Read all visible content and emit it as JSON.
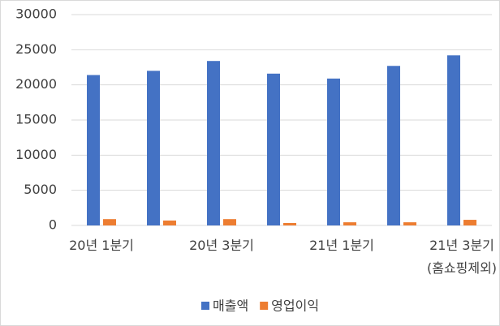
{
  "chart_data": {
    "type": "bar",
    "categories": [
      "20년 1분기",
      null,
      "20년 3분기",
      null,
      "21년 1분기",
      null,
      "21년 3분기\n(홈쇼핑제외)"
    ],
    "series": [
      {
        "name": "매출액",
        "color": "#4472c4",
        "values": [
          21400,
          22000,
          23400,
          21600,
          20900,
          22700,
          24200
        ]
      },
      {
        "name": "영업이익",
        "color": "#ed7d31",
        "values": [
          900,
          700,
          900,
          350,
          450,
          450,
          800
        ]
      }
    ],
    "ylim": [
      0,
      30000
    ],
    "yticks": [
      0,
      5000,
      10000,
      15000,
      20000,
      25000,
      30000
    ],
    "grid": true,
    "legend": "bottom"
  }
}
